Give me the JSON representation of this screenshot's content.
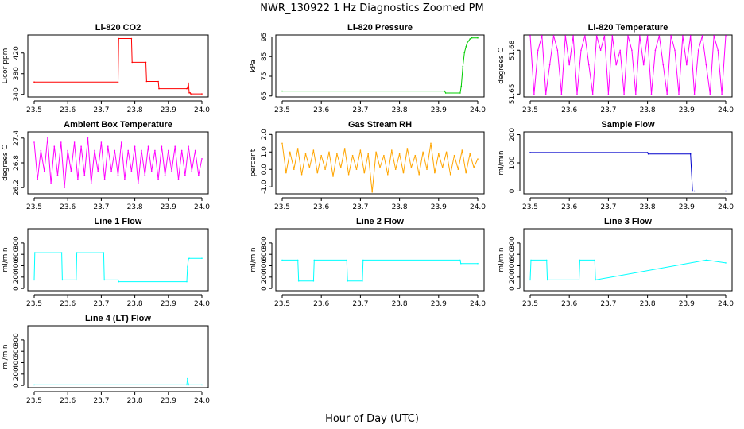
{
  "title": "NWR_130922  1 Hz Diagnostics Zoomed PM",
  "xlabel": "Hour of Day (UTC)",
  "chart_data": [
    {
      "type": "line",
      "title": "Li-820 CO2",
      "ylabel": "Licor ppm",
      "xlim": [
        23.5,
        24.0
      ],
      "ylim": [
        335,
        455
      ],
      "x_ticks": [
        "23.5",
        "23.6",
        "23.7",
        "23.8",
        "23.9",
        "24.0"
      ],
      "y_ticks": [
        "340",
        "380",
        "420"
      ],
      "color": "#ff0000",
      "series": [
        {
          "x": [
            23.5,
            23.75,
            23.752,
            23.79,
            23.792,
            23.833,
            23.835,
            23.87,
            23.872,
            23.955,
            23.957,
            23.96,
            23.962,
            23.965,
            23.967,
            24.0
          ],
          "y": [
            364,
            364,
            448,
            448,
            402,
            402,
            365,
            365,
            351,
            351,
            352,
            362,
            343,
            343,
            341,
            341
          ]
        }
      ]
    },
    {
      "type": "line",
      "title": "Li-820 Pressure",
      "ylabel": "kPa",
      "xlim": [
        23.5,
        24.0
      ],
      "ylim": [
        64.5,
        96
      ],
      "x_ticks": [
        "23.5",
        "23.6",
        "23.7",
        "23.8",
        "23.9",
        "24.0"
      ],
      "y_ticks": [
        "65",
        "75",
        "85",
        "95"
      ],
      "color": "#00cc00",
      "series": [
        {
          "x": [
            23.5,
            23.915,
            23.918,
            23.955,
            23.958,
            23.962,
            23.966,
            23.97,
            23.973,
            23.977,
            23.98,
            23.985,
            24.0
          ],
          "y": [
            67.5,
            67.5,
            66.5,
            66.5,
            70,
            80,
            87,
            90,
            92,
            93,
            94,
            94.5,
            94.5
          ]
        }
      ]
    },
    {
      "type": "line",
      "title": "Li-820 Temperature",
      "ylabel": "degrees C",
      "xlim": [
        23.5,
        24.0
      ],
      "ylim": [
        51.648,
        51.6905
      ],
      "x_ticks": [
        "23.5",
        "23.6",
        "23.7",
        "23.8",
        "23.9",
        "24.0"
      ],
      "y_ticks": [
        "51.65",
        "51.68"
      ],
      "color": "#ff00ff",
      "levels": [
        51.65,
        51.67,
        51.68,
        51.69
      ],
      "series": [
        {
          "x": [
            23.5,
            23.51,
            23.52,
            23.53,
            23.54,
            23.55,
            23.56,
            23.57,
            23.58,
            23.59,
            23.6,
            23.61,
            23.62,
            23.63,
            23.64,
            23.65,
            23.66,
            23.67,
            23.68,
            23.69,
            23.7,
            23.71,
            23.72,
            23.73,
            23.74,
            23.75,
            23.76,
            23.77,
            23.78,
            23.79,
            23.8,
            23.81,
            23.82,
            23.83,
            23.84,
            23.85,
            23.86,
            23.87,
            23.88,
            23.89,
            23.9,
            23.91,
            23.92,
            23.93,
            23.94,
            23.95,
            23.96,
            23.97,
            23.98,
            23.99,
            24.0
          ],
          "y": [
            51.69,
            51.65,
            51.68,
            51.69,
            51.65,
            51.67,
            51.69,
            51.68,
            51.65,
            51.69,
            51.67,
            51.69,
            51.65,
            51.68,
            51.69,
            51.67,
            51.65,
            51.69,
            51.68,
            51.69,
            51.65,
            51.69,
            51.67,
            51.68,
            51.65,
            51.69,
            51.68,
            51.65,
            51.69,
            51.67,
            51.69,
            51.65,
            51.68,
            51.69,
            51.67,
            51.65,
            51.69,
            51.68,
            51.65,
            51.69,
            51.67,
            51.69,
            51.65,
            51.68,
            51.69,
            51.67,
            51.65,
            51.69,
            51.68,
            51.65,
            51.69
          ]
        }
      ]
    },
    {
      "type": "line",
      "title": "Ambient Box Temperature",
      "ylabel": "degrees C",
      "xlim": [
        23.5,
        24.0
      ],
      "ylim": [
        26.05,
        27.55
      ],
      "x_ticks": [
        "23.5",
        "23.6",
        "23.7",
        "23.8",
        "23.9",
        "24.0"
      ],
      "y_ticks": [
        "26.2",
        "26.8",
        "27.4"
      ],
      "color": "#ff00ff",
      "series": [
        {
          "x": [
            23.5,
            23.51,
            23.52,
            23.53,
            23.54,
            23.55,
            23.56,
            23.57,
            23.58,
            23.59,
            23.6,
            23.61,
            23.62,
            23.63,
            23.64,
            23.65,
            23.66,
            23.67,
            23.68,
            23.69,
            23.7,
            23.71,
            23.72,
            23.73,
            23.74,
            23.75,
            23.76,
            23.77,
            23.78,
            23.79,
            23.8,
            23.81,
            23.82,
            23.83,
            23.84,
            23.85,
            23.86,
            23.87,
            23.88,
            23.89,
            23.9,
            23.91,
            23.92,
            23.93,
            23.94,
            23.95,
            23.96,
            23.97,
            23.98,
            23.99,
            24.0
          ],
          "y": [
            27.3,
            26.4,
            27.1,
            26.6,
            27.4,
            26.3,
            27.2,
            26.5,
            27.3,
            26.2,
            27.1,
            26.6,
            27.3,
            26.4,
            27.2,
            26.5,
            27.4,
            26.3,
            27.1,
            26.6,
            27.3,
            26.4,
            27.2,
            26.6,
            27.1,
            26.5,
            27.3,
            26.4,
            27.1,
            26.6,
            27.2,
            26.3,
            27.1,
            26.5,
            27.2,
            26.6,
            27.1,
            26.4,
            27.2,
            26.5,
            27.1,
            26.6,
            27.2,
            26.4,
            27.1,
            26.5,
            27.2,
            26.6,
            27.1,
            26.5,
            26.9
          ]
        }
      ]
    },
    {
      "type": "line",
      "title": "Gas Stream RH",
      "ylabel": "percent",
      "xlim": [
        23.5,
        24.0
      ],
      "ylim": [
        -1.4,
        2.15
      ],
      "x_ticks": [
        "23.5",
        "23.6",
        "23.7",
        "23.8",
        "23.9",
        "24.0"
      ],
      "y_ticks": [
        "-1.0",
        "0.0",
        "1.0",
        "2.0"
      ],
      "color": "#ffa500",
      "series": [
        {
          "x": [
            23.5,
            23.51,
            23.52,
            23.53,
            23.54,
            23.55,
            23.56,
            23.57,
            23.58,
            23.59,
            23.6,
            23.61,
            23.62,
            23.63,
            23.64,
            23.65,
            23.66,
            23.67,
            23.68,
            23.69,
            23.7,
            23.71,
            23.72,
            23.73,
            23.74,
            23.75,
            23.76,
            23.77,
            23.78,
            23.79,
            23.8,
            23.81,
            23.82,
            23.83,
            23.84,
            23.85,
            23.86,
            23.87,
            23.88,
            23.89,
            23.9,
            23.91,
            23.92,
            23.93,
            23.94,
            23.95,
            23.96,
            23.97,
            23.98,
            23.99,
            24.0
          ],
          "y": [
            1.5,
            -0.2,
            1.0,
            0.0,
            1.2,
            -0.3,
            0.9,
            0.1,
            1.1,
            -0.2,
            0.8,
            0.0,
            1.0,
            -0.4,
            0.9,
            0.1,
            1.2,
            -0.3,
            0.8,
            0.0,
            1.1,
            -0.2,
            0.9,
            -1.3,
            1.0,
            0.1,
            0.8,
            -0.3,
            1.1,
            0.0,
            0.9,
            -0.2,
            1.2,
            0.1,
            0.8,
            -0.3,
            1.0,
            0.0,
            1.5,
            -0.2,
            0.9,
            0.1,
            1.0,
            -0.3,
            0.8,
            0.0,
            1.1,
            -0.2,
            0.9,
            0.1,
            0.6
          ]
        }
      ]
    },
    {
      "type": "line",
      "title": "Sample Flow",
      "ylabel": "ml/min",
      "xlim": [
        23.5,
        24.0
      ],
      "ylim": [
        -10,
        210
      ],
      "x_ticks": [
        "23.5",
        "23.6",
        "23.7",
        "23.8",
        "23.9",
        "24.0"
      ],
      "y_ticks": [
        "0",
        "100",
        "200"
      ],
      "color": "#0000cc",
      "series": [
        {
          "x": [
            23.5,
            23.8,
            23.802,
            23.91,
            23.915,
            23.92,
            24.0
          ],
          "y": [
            137,
            137,
            132,
            132,
            0,
            0,
            0
          ]
        }
      ]
    },
    {
      "type": "line",
      "title": "Line 1 Flow",
      "ylabel": "ml/min",
      "xlim": [
        23.5,
        24.0
      ],
      "ylim": [
        -40,
        1050
      ],
      "x_ticks": [
        "23.5",
        "23.6",
        "23.7",
        "23.8",
        "23.9",
        "24.0"
      ],
      "y_ticks": [
        "0",
        "200",
        "400",
        "600",
        "800"
      ],
      "color": "#00ffff",
      "series": [
        {
          "x": [
            23.5,
            23.502,
            23.582,
            23.584,
            23.625,
            23.627,
            23.707,
            23.709,
            23.75,
            23.752,
            23.955,
            23.957,
            23.96,
            23.962,
            24.0
          ],
          "y": [
            150,
            630,
            630,
            150,
            150,
            630,
            630,
            150,
            150,
            120,
            120,
            380,
            520,
            530,
            530
          ]
        }
      ]
    },
    {
      "type": "line",
      "title": "Line 2 Flow",
      "ylabel": "ml/min",
      "xlim": [
        23.5,
        24.0
      ],
      "ylim": [
        -40,
        1050
      ],
      "x_ticks": [
        "23.5",
        "23.6",
        "23.7",
        "23.8",
        "23.9",
        "24.0"
      ],
      "y_ticks": [
        "0",
        "200",
        "400",
        "600",
        "800"
      ],
      "color": "#00ffff",
      "series": [
        {
          "x": [
            23.5,
            23.54,
            23.542,
            23.58,
            23.582,
            23.665,
            23.667,
            23.705,
            23.707,
            23.955,
            23.957,
            24.0
          ],
          "y": [
            500,
            500,
            130,
            130,
            500,
            500,
            130,
            130,
            500,
            500,
            440,
            440
          ]
        }
      ]
    },
    {
      "type": "line",
      "title": "Line 3 Flow",
      "ylabel": "ml/min",
      "xlim": [
        23.5,
        24.0
      ],
      "ylim": [
        -40,
        1050
      ],
      "x_ticks": [
        "23.5",
        "23.6",
        "23.7",
        "23.8",
        "23.9",
        "24.0"
      ],
      "y_ticks": [
        "0",
        "200",
        "400",
        "600",
        "800"
      ],
      "color": "#00ffff",
      "series": [
        {
          "x": [
            23.5,
            23.502,
            23.542,
            23.544,
            23.625,
            23.627,
            23.665,
            23.667,
            23.95,
            23.952,
            24.0
          ],
          "y": [
            150,
            500,
            500,
            150,
            150,
            500,
            500,
            150,
            500,
            500,
            450
          ]
        }
      ]
    },
    {
      "type": "line",
      "title": "Line 4 (LT) Flow",
      "ylabel": "ml/min",
      "xlim": [
        23.5,
        24.0
      ],
      "ylim": [
        -40,
        1050
      ],
      "x_ticks": [
        "23.5",
        "23.6",
        "23.7",
        "23.8",
        "23.9",
        "24.0"
      ],
      "y_ticks": [
        "0",
        "200",
        "400",
        "600",
        "800"
      ],
      "color": "#00ffff",
      "series": [
        {
          "x": [
            23.5,
            23.955,
            23.957,
            23.959,
            23.961,
            24.0
          ],
          "y": [
            10,
            10,
            120,
            40,
            10,
            10
          ]
        }
      ]
    }
  ]
}
